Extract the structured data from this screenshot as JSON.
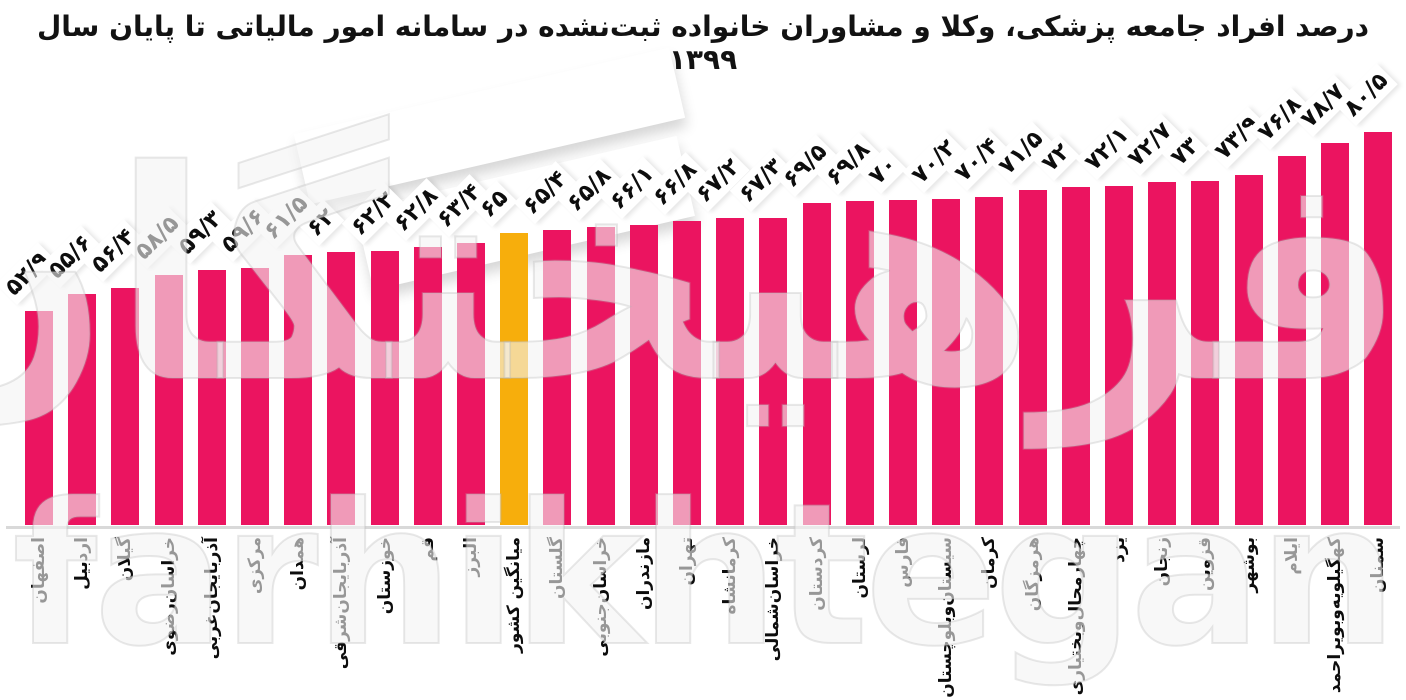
{
  "title": "درصد افراد جامعه پزشکی، وکلا و مشاوران خانواده ثبت‌نشده در سامانه امور مالیاتی تا پایان سال ۱۳۹۹",
  "watermark": {
    "persian": "فرهیختگان",
    "latin": "farhikhtegan"
  },
  "colors": {
    "bar": "#EB1460",
    "highlight_bar": "#F7AE0C",
    "text": "#0D0D0D",
    "axis_line": "#D9D9D9",
    "value_label_bg": "#FFFFFF"
  },
  "chart_data": {
    "type": "bar",
    "title": "درصد افراد جامعه پزشکی، وکلا و مشاوران خانواده ثبت‌نشده در سامانه امور مالیاتی تا پایان سال ۱۳۹۹",
    "orientation": "vertical",
    "grid": false,
    "legend": false,
    "axes_hidden": true,
    "ylim": [
      20,
      82
    ],
    "highlight_index": 11,
    "highlight_category": "میانگین کشور",
    "categories": [
      "اصفهان",
      "اردبیل",
      "گیلان",
      "خراسان‌رضوی",
      "آذربایجان‌غربی",
      "مرکزی",
      "همدان",
      "آذربایجان‌شرقی",
      "خوزستان",
      "قم",
      "البرز",
      "میانگین کشور",
      "گلستان",
      "خراسان‌جنوبی",
      "مازندران",
      "تهران",
      "کرمانشاه",
      "خراسان‌شمالی",
      "کردستان",
      "لرستان",
      "فارس",
      "سیستان‌وبلوچستان",
      "کرمان",
      "هرمزگان",
      "چهارمحال‌وبختیاری",
      "یزد",
      "زنجان",
      "قزوین",
      "بوشهر",
      "ایلام",
      "کهگیلویه‌وبویراحمد",
      "سمنان"
    ],
    "values": [
      52.9,
      55.6,
      56.4,
      58.5,
      59.3,
      59.6,
      61.5,
      62,
      62.2,
      62.8,
      63.4,
      65,
      65.4,
      65.8,
      66.1,
      66.8,
      67.2,
      67.3,
      69.5,
      69.8,
      70,
      70.2,
      70.4,
      71.5,
      72,
      72.1,
      72.7,
      73,
      73.9,
      76.8,
      78.7,
      80.5
    ],
    "value_labels": [
      "۵۲/۹",
      "۵۵/۶",
      "۵۶/۴",
      "۵۸/۵",
      "۵۹/۳",
      "۵۹/۶",
      "۶۱/۵",
      "۶۲",
      "۶۲/۲",
      "۶۲/۸",
      "۶۳/۴",
      "۶۵",
      "۶۵/۴",
      "۶۵/۸",
      "۶۶/۱",
      "۶۶/۸",
      "۶۷/۲",
      "۶۷/۳",
      "۶۹/۵",
      "۶۹/۸",
      "۷۰",
      "۷۰/۲",
      "۷۰/۴",
      "۷۱/۵",
      "۷۲",
      "۷۲/۱",
      "۷۲/۷",
      "۷۳",
      "۷۳/۹",
      "۷۶/۸",
      "۷۸/۷",
      "۸۰/۵"
    ]
  }
}
